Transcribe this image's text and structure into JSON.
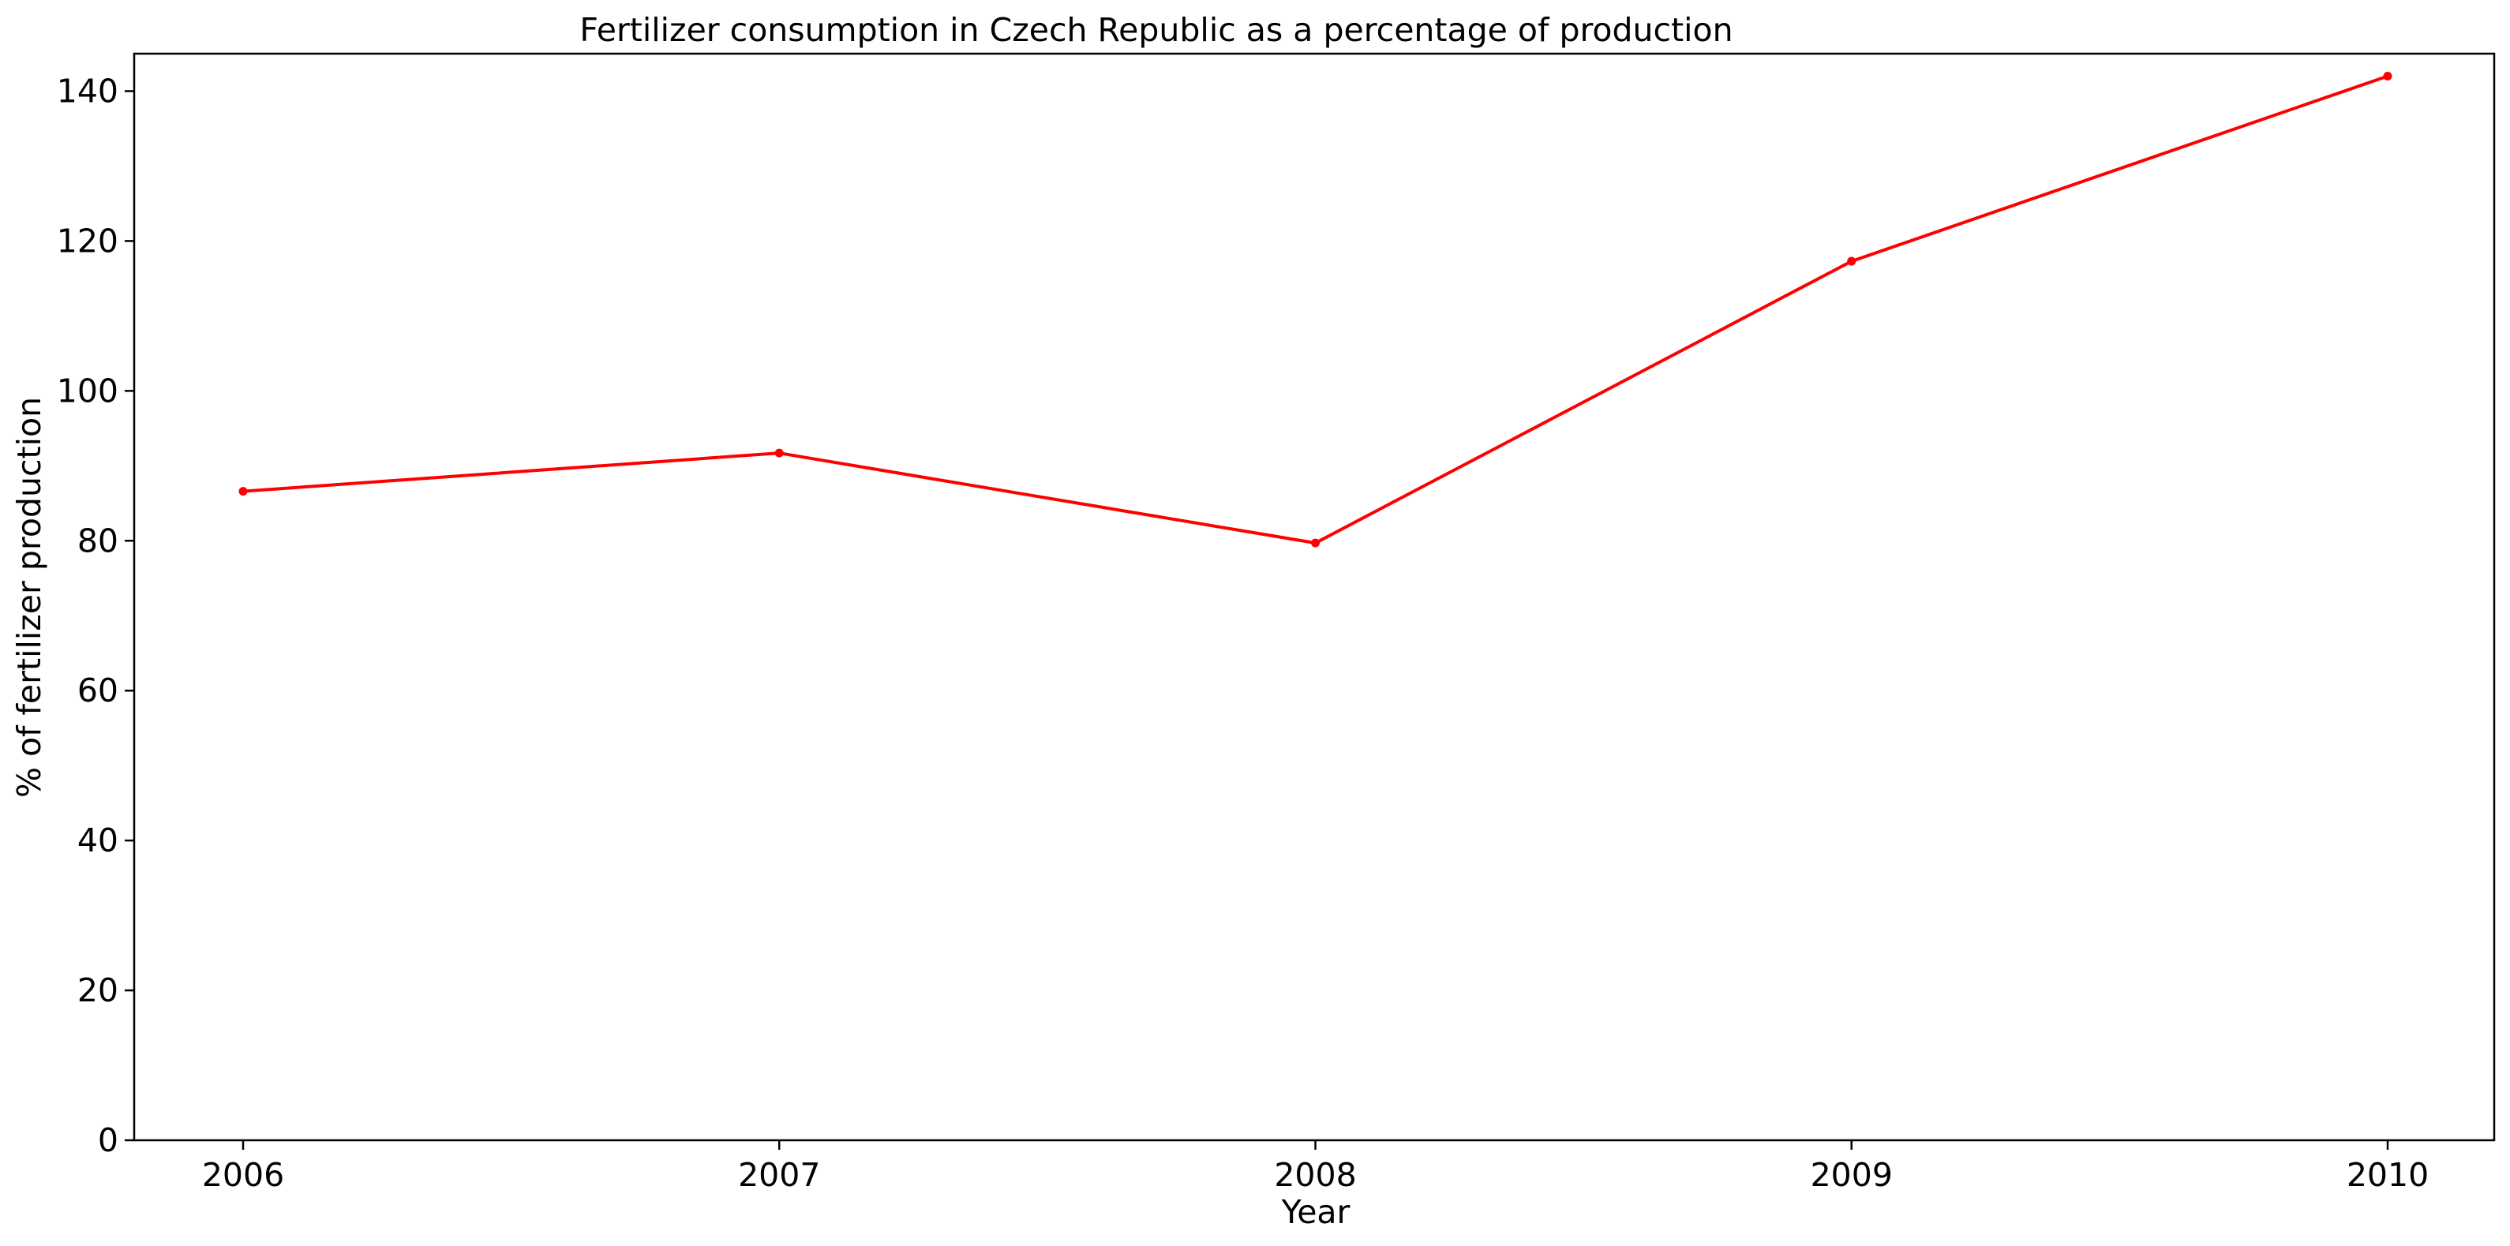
{
  "chart_data": {
    "type": "line",
    "title": "Fertilizer consumption in Czech Republic as a percentage of production",
    "xlabel": "Year",
    "ylabel": "% of fertilizer production",
    "x": [
      "2006",
      "2007",
      "2008",
      "2009",
      "2010"
    ],
    "series": [
      {
        "values": [
          86.6,
          91.7,
          79.7,
          117.3,
          142.0
        ],
        "color": "#ff0000"
      }
    ],
    "ylim": [
      0,
      145
    ],
    "yticks": [
      "0",
      "20",
      "40",
      "60",
      "80",
      "100",
      "120",
      "140"
    ],
    "grid": false,
    "legend": "none"
  }
}
